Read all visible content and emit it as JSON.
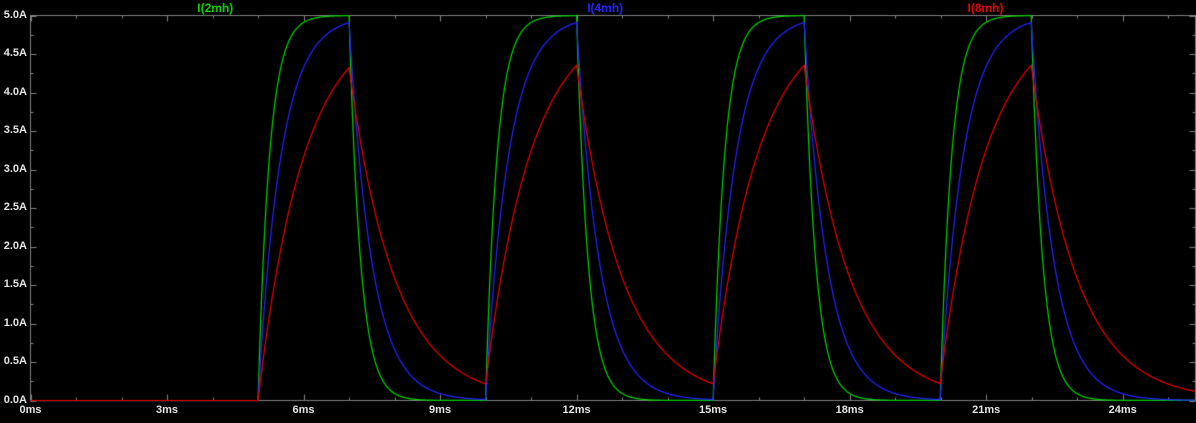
{
  "theme": {
    "background": "#000000",
    "axis_color": "#828282",
    "text_color": "#e4e4e4"
  },
  "chart_data": {
    "type": "line",
    "title": "",
    "grid": false,
    "legend_position": "top",
    "x_axis": {
      "unit": "ms",
      "range_ms": [
        0,
        25.6
      ],
      "major_tick_step_ms": 3,
      "minor_tick_step_ms": 1,
      "major_ticks": [
        {
          "t": 0,
          "label": "0ms"
        },
        {
          "t": 3,
          "label": "3ms"
        },
        {
          "t": 6,
          "label": "6ms"
        },
        {
          "t": 9,
          "label": "9ms"
        },
        {
          "t": 12,
          "label": "12ms"
        },
        {
          "t": 15,
          "label": "15ms"
        },
        {
          "t": 18,
          "label": "18ms"
        },
        {
          "t": 21,
          "label": "21ms"
        },
        {
          "t": 24,
          "label": "24ms"
        }
      ]
    },
    "y_axis": {
      "unit": "A",
      "range_A": [
        0,
        5
      ],
      "major_tick_step_A": 0.5,
      "minor_tick_step_A": 0.25,
      "major_ticks": [
        {
          "v": 5.0,
          "label": "5.0A"
        },
        {
          "v": 4.5,
          "label": "4.5A"
        },
        {
          "v": 4.0,
          "label": "4.0A"
        },
        {
          "v": 3.5,
          "label": "3.5A"
        },
        {
          "v": 3.0,
          "label": "3.0A"
        },
        {
          "v": 2.5,
          "label": "2.5A"
        },
        {
          "v": 2.0,
          "label": "2.0A"
        },
        {
          "v": 1.5,
          "label": "1.5A"
        },
        {
          "v": 1.0,
          "label": "1.0A"
        },
        {
          "v": 0.5,
          "label": "0.5A"
        },
        {
          "v": 0.0,
          "label": "0.0A"
        }
      ]
    },
    "legend": [
      {
        "label": "I(2mh)",
        "color": "#00d200"
      },
      {
        "label": "I(4mh)",
        "color": "#2424ff"
      },
      {
        "label": "I(8mh)",
        "color": "#e60000"
      }
    ],
    "series": [
      {
        "name": "I(2mh)",
        "color": "#00d200",
        "inductance_mH": 2,
        "tau_ms": 0.25,
        "peak_A": 5.0
      },
      {
        "name": "I(4mh)",
        "color": "#2424ff",
        "inductance_mH": 4,
        "tau_ms": 0.5,
        "peak_A": 4.91
      },
      {
        "name": "I(8mh)",
        "color": "#e60000",
        "inductance_mH": 8,
        "tau_ms": 1.0,
        "peak_A": 4.35
      }
    ],
    "waveform": {
      "model": "exponential RL charge/discharge: rise I=A*(1-exp(-t/tau)), fall I=I0*exp(-t/tau)",
      "amplitude_A": 5.0,
      "pulse_start_ms": 5.0,
      "pulse_on_ms": 2.0,
      "period_ms": 5.0,
      "pulse_count": 4
    }
  }
}
